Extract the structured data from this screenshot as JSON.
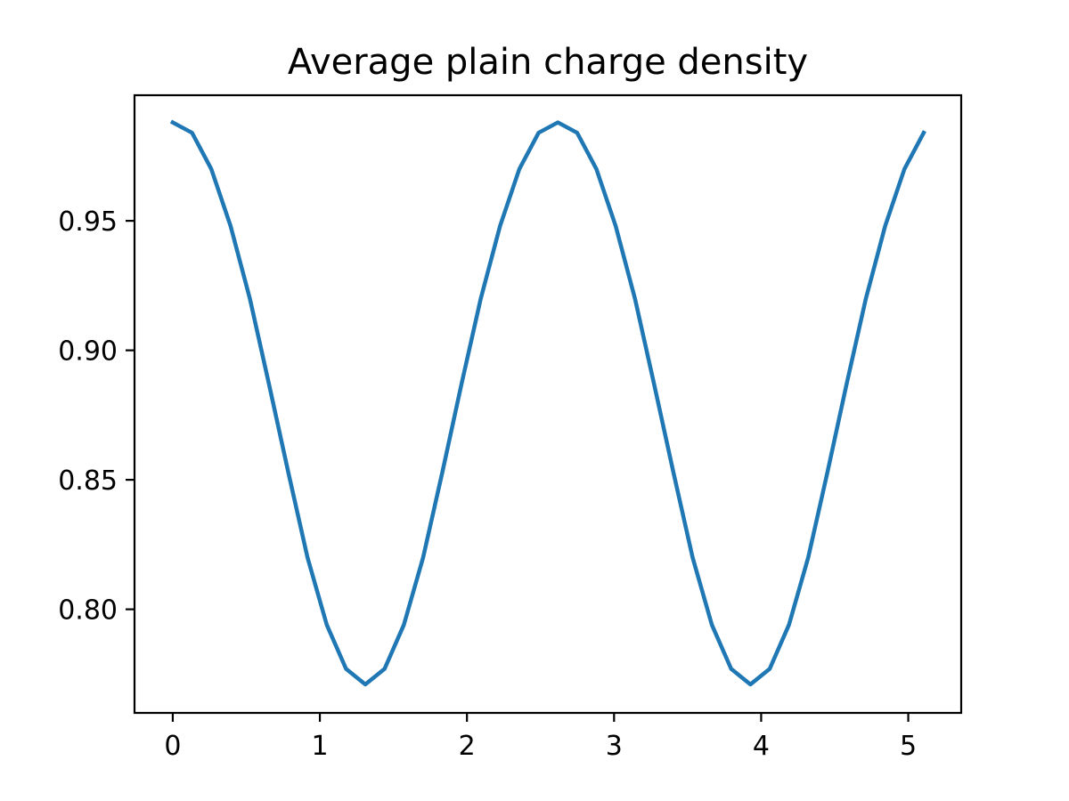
{
  "chart_data": {
    "type": "line",
    "title": "Average plain charge density",
    "xlabel": "",
    "ylabel": "",
    "xlim": [
      -0.26,
      5.36
    ],
    "ylim": [
      0.76,
      0.9985
    ],
    "x_ticks": [
      0,
      1,
      2,
      3,
      4,
      5
    ],
    "x_tick_labels": [
      "0",
      "1",
      "2",
      "3",
      "4",
      "5"
    ],
    "y_ticks": [
      0.8,
      0.85,
      0.9,
      0.95
    ],
    "y_tick_labels": [
      "0.80",
      "0.85",
      "0.90",
      "0.95"
    ],
    "grid": false,
    "legend": "none",
    "series": [
      {
        "color": "#1f77b4",
        "x": [
          0.0,
          0.131,
          0.262,
          0.393,
          0.524,
          0.654,
          0.785,
          0.916,
          1.047,
          1.178,
          1.309,
          1.44,
          1.571,
          1.702,
          1.833,
          1.963,
          2.094,
          2.225,
          2.356,
          2.487,
          2.618,
          2.749,
          2.88,
          3.011,
          3.142,
          3.272,
          3.403,
          3.534,
          3.665,
          3.796,
          3.927,
          4.058,
          4.189,
          4.32,
          4.451,
          4.581,
          4.712,
          4.843,
          4.974,
          5.105
        ],
        "y": [
          0.988,
          0.984,
          0.97,
          0.948,
          0.92,
          0.887,
          0.853,
          0.82,
          0.794,
          0.777,
          0.771,
          0.777,
          0.794,
          0.82,
          0.853,
          0.887,
          0.92,
          0.948,
          0.97,
          0.984,
          0.988,
          0.984,
          0.97,
          0.948,
          0.92,
          0.887,
          0.853,
          0.82,
          0.794,
          0.777,
          0.771,
          0.777,
          0.794,
          0.82,
          0.853,
          0.887,
          0.92,
          0.948,
          0.97,
          0.984
        ]
      }
    ]
  }
}
